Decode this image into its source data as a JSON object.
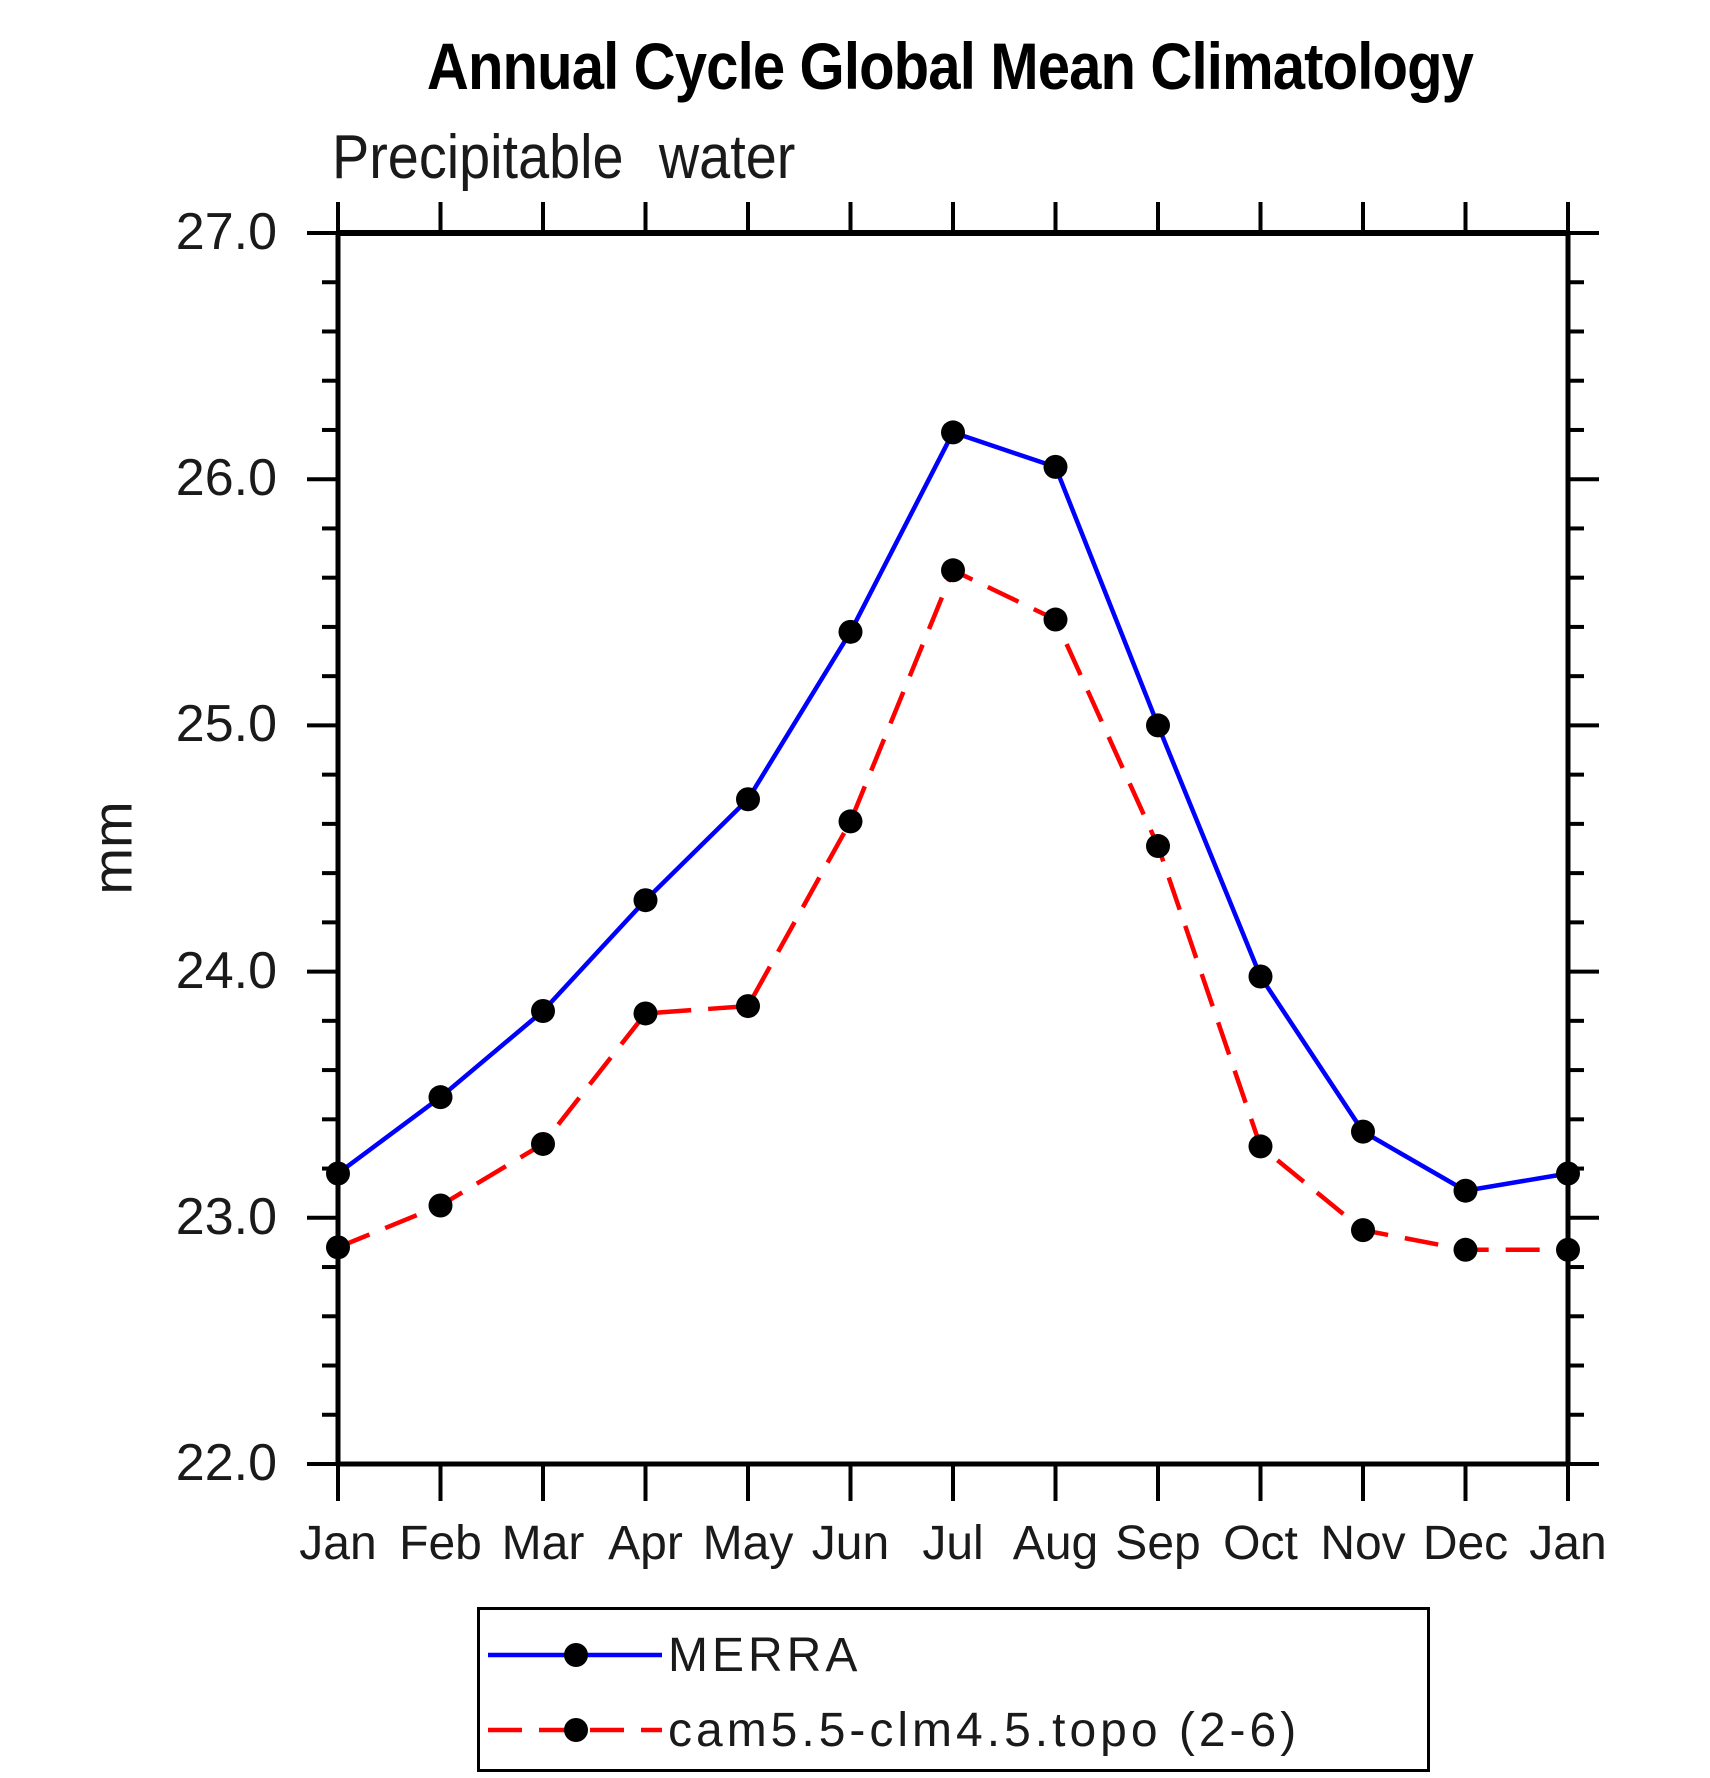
{
  "canvas": {
    "background": "#ffffff"
  },
  "chart_data": {
    "type": "line",
    "title": "Annual Cycle Global Mean Climatology",
    "subtitle": "Precipitable water",
    "ylabel": "mm",
    "x_categories": [
      "Jan",
      "Feb",
      "Mar",
      "Apr",
      "May",
      "Jun",
      "Jul",
      "Aug",
      "Sep",
      "Oct",
      "Nov",
      "Dec",
      "Jan"
    ],
    "ylim": [
      22.0,
      27.0
    ],
    "y_major_tick_step": 1.0,
    "y_minor_tick_step": 0.2,
    "y_tick_labels": [
      "22.0",
      "23.0",
      "24.0",
      "25.0",
      "26.0",
      "27.0"
    ],
    "grid": "off",
    "legend_position": "bottom-center",
    "axis_color": "#000000",
    "marker": {
      "shape": "circle",
      "color": "#000000"
    },
    "series": [
      {
        "name": "MERRA",
        "color": "#0000ff",
        "line_style": "solid",
        "values": [
          23.18,
          23.49,
          23.84,
          24.29,
          24.7,
          25.38,
          26.19,
          26.05,
          25.0,
          23.98,
          23.35,
          23.11,
          23.18
        ]
      },
      {
        "name": "cam5.5-clm4.5.topo (2-6)",
        "color": "#ff0000",
        "line_style": "dashed",
        "values": [
          22.88,
          23.05,
          23.3,
          23.83,
          23.86,
          24.61,
          25.63,
          25.43,
          24.51,
          23.29,
          22.95,
          22.87,
          22.87
        ]
      }
    ]
  }
}
